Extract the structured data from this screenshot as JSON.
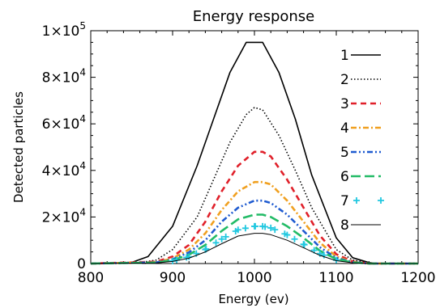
{
  "chart_data": {
    "type": "line",
    "title": "Energy response",
    "xlabel": "Energy (ev)",
    "ylabel": "Detected particles",
    "xlim": [
      800,
      1200
    ],
    "ylim": [
      0,
      100000
    ],
    "x_ticks": [
      {
        "value": 800,
        "label": "800"
      },
      {
        "value": 900,
        "label": "900"
      },
      {
        "value": 1000,
        "label": "1000"
      },
      {
        "value": 1100,
        "label": "1100"
      },
      {
        "value": 1200,
        "label": "1200"
      }
    ],
    "y_ticks": [
      {
        "value": 0,
        "mantissa": "0",
        "exp": ""
      },
      {
        "value": 20000,
        "mantissa": "2×10",
        "exp": "4"
      },
      {
        "value": 40000,
        "mantissa": "4×10",
        "exp": "4"
      },
      {
        "value": 60000,
        "mantissa": "6×10",
        "exp": "4"
      },
      {
        "value": 80000,
        "mantissa": "8×10",
        "exp": "4"
      },
      {
        "value": 100000,
        "mantissa": "1×10",
        "exp": "5"
      }
    ],
    "grid": false,
    "legend_position": "top-right",
    "series": [
      {
        "name": "1",
        "color": "#000000",
        "style": "solid",
        "peak": 95000,
        "x": [
          800,
          850,
          870,
          900,
          930,
          950,
          970,
          990,
          1000,
          1010,
          1030,
          1050,
          1070,
          1100,
          1120,
          1140,
          1150,
          1200
        ],
        "values": [
          0,
          500,
          3000,
          16000,
          42000,
          62000,
          82000,
          95000,
          95000,
          95000,
          82000,
          62000,
          38000,
          11000,
          2500,
          400,
          0,
          0
        ]
      },
      {
        "name": "2",
        "color": "#000000",
        "style": "dotted",
        "peak": 67000,
        "x": [
          800,
          860,
          880,
          900,
          930,
          950,
          970,
          990,
          1000,
          1010,
          1030,
          1050,
          1070,
          1100,
          1120,
          1140,
          1160,
          1200
        ],
        "values": [
          0,
          400,
          1500,
          6000,
          20000,
          36000,
          52000,
          64000,
          67000,
          66000,
          55000,
          40000,
          24000,
          6000,
          1500,
          300,
          0,
          0
        ]
      },
      {
        "name": "3",
        "color": "#e0202a",
        "style": "dashed",
        "peak": 48000,
        "x": [
          800,
          880,
          900,
          920,
          940,
          960,
          980,
          1000,
          1010,
          1020,
          1040,
          1060,
          1080,
          1100,
          1120,
          1140,
          1200
        ],
        "values": [
          0,
          800,
          3000,
          8000,
          18000,
          31000,
          42000,
          48000,
          48000,
          46000,
          36000,
          24000,
          12000,
          4000,
          900,
          0,
          0
        ]
      },
      {
        "name": "4",
        "color": "#f0a020",
        "style": "dashdot",
        "peak": 35000,
        "x": [
          800,
          880,
          900,
          920,
          940,
          960,
          980,
          1000,
          1010,
          1020,
          1040,
          1060,
          1080,
          1100,
          1120,
          1140,
          1200
        ],
        "values": [
          0,
          600,
          2200,
          6000,
          13000,
          23000,
          31000,
          35000,
          35000,
          34000,
          27000,
          18000,
          9000,
          3000,
          700,
          0,
          0
        ]
      },
      {
        "name": "5",
        "color": "#1f5bd0",
        "style": "dashdotdot",
        "peak": 27000,
        "x": [
          800,
          880,
          900,
          920,
          940,
          960,
          980,
          1000,
          1010,
          1020,
          1040,
          1060,
          1080,
          1100,
          1120,
          1140,
          1200
        ],
        "values": [
          0,
          500,
          1800,
          4800,
          10000,
          18000,
          24000,
          27000,
          27000,
          26000,
          21000,
          14000,
          7000,
          2400,
          600,
          0,
          0
        ]
      },
      {
        "name": "6",
        "color": "#22bb66",
        "style": "longdash",
        "peak": 21000,
        "x": [
          800,
          880,
          900,
          920,
          940,
          960,
          980,
          1000,
          1010,
          1020,
          1040,
          1060,
          1080,
          1100,
          1120,
          1140,
          1200
        ],
        "values": [
          0,
          400,
          1400,
          3800,
          8000,
          14000,
          19000,
          21000,
          21000,
          20000,
          16000,
          11000,
          5500,
          1900,
          500,
          0,
          0
        ]
      },
      {
        "name": "7",
        "color": "#22c8e0",
        "style": "plus",
        "peak": 16000,
        "x": [
          800,
          880,
          900,
          920,
          940,
          960,
          980,
          1000,
          1010,
          1020,
          1040,
          1060,
          1080,
          1100,
          1120,
          1140,
          1200
        ],
        "values": [
          0,
          300,
          1100,
          2900,
          6000,
          10500,
          14500,
          16000,
          16000,
          15300,
          12300,
          8300,
          4300,
          1500,
          400,
          0,
          0
        ]
      },
      {
        "name": "8",
        "color": "#000000",
        "style": "thin",
        "peak": 13000,
        "x": [
          800,
          880,
          900,
          920,
          940,
          960,
          980,
          1000,
          1010,
          1020,
          1040,
          1060,
          1080,
          1100,
          1120,
          1140,
          1200
        ],
        "values": [
          0,
          250,
          900,
          2300,
          5000,
          8500,
          11800,
          13000,
          13000,
          12400,
          10000,
          6800,
          3500,
          1200,
          300,
          0,
          0
        ]
      }
    ]
  }
}
